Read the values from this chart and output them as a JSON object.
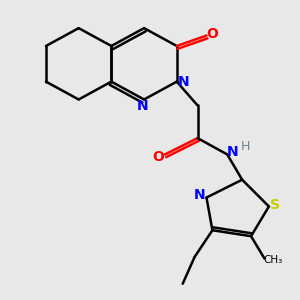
{
  "background_color": "#e8e8e8",
  "atom_colors": {
    "C": "#000000",
    "N": "#0000ff",
    "O": "#ff0000",
    "S": "#cccc00",
    "H_color": "#708090"
  },
  "bond_color": "#000000",
  "bond_width": 1.8
}
